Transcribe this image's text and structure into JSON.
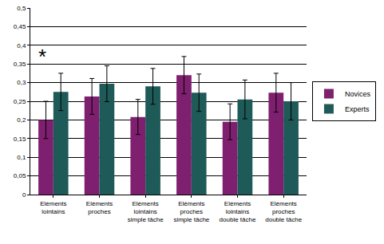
{
  "chart_data": {
    "type": "bar",
    "categories": [
      "Eléments lointains",
      "Eléments proches",
      "Eléments lointains simple tâche",
      "Eléments proches simple tâche",
      "Eléments lointains double tâche",
      "Eléments proches double tâche"
    ],
    "series": [
      {
        "name": "Novices",
        "color": "#7f1f6f",
        "values": [
          0.2,
          0.263,
          0.208,
          0.32,
          0.195,
          0.273
        ],
        "errors": [
          0.05,
          0.048,
          0.047,
          0.05,
          0.048,
          0.052
        ]
      },
      {
        "name": "Experts",
        "color": "#1e5a58",
        "values": [
          0.275,
          0.297,
          0.29,
          0.273,
          0.255,
          0.25
        ],
        "errors": [
          0.05,
          0.048,
          0.048,
          0.05,
          0.052,
          0.05
        ]
      }
    ],
    "ylim": [
      0,
      0.5
    ],
    "yticks": [
      0,
      {
        "value": 0.05,
        "label": "0,05"
      },
      {
        "value": 0.1,
        "label": "0,1"
      },
      {
        "value": 0.15,
        "label": "0,15"
      },
      {
        "value": 0.2,
        "label": "0,2"
      },
      {
        "value": 0.25,
        "label": "0,25"
      },
      {
        "value": 0.3,
        "label": "0,3"
      },
      {
        "value": 0.35,
        "label": "0,35"
      },
      {
        "value": 0.4,
        "label": "0,4"
      },
      {
        "value": 0.45,
        "label": "0,45"
      },
      {
        "value": 0.5,
        "label": "0,5"
      }
    ],
    "grid": true,
    "legend": "right",
    "annotations": [
      {
        "text": "*",
        "x": 0,
        "y": 0.37
      }
    ]
  }
}
